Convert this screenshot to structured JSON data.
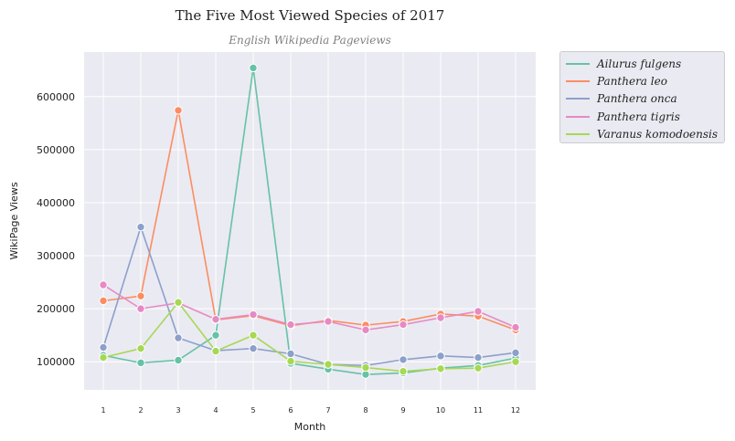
{
  "chart_data": {
    "type": "line",
    "title": "The Five Most Viewed Species of 2017",
    "subtitle": "English Wikipedia Pageviews",
    "xlabel": "Month",
    "ylabel": "WikiPage Views",
    "x": [
      1,
      2,
      3,
      4,
      5,
      6,
      7,
      8,
      9,
      10,
      11,
      12
    ],
    "xticks": [
      "1",
      "2",
      "3",
      "4",
      "5",
      "6",
      "7",
      "8",
      "9",
      "10",
      "11",
      "12"
    ],
    "yticks": [
      "100000",
      "200000",
      "300000",
      "400000",
      "500000",
      "600000"
    ],
    "ylim": [
      47000,
      684000
    ],
    "grid": true,
    "legend_position": "outside-right",
    "series": [
      {
        "name": "Ailurus fulgens",
        "color": "#66c2a5",
        "values": [
          112000,
          98000,
          103000,
          150000,
          654000,
          97000,
          86000,
          76000,
          79000,
          88000,
          93000,
          107000
        ]
      },
      {
        "name": "Panthera leo",
        "color": "#fc8d62",
        "values": [
          215000,
          224000,
          574000,
          179000,
          187000,
          168000,
          178000,
          169000,
          176000,
          190000,
          186000,
          160000
        ]
      },
      {
        "name": "Panthera onca",
        "color": "#8da0cb",
        "values": [
          127000,
          354000,
          145000,
          121000,
          125000,
          115000,
          95000,
          93000,
          104000,
          111000,
          108000,
          117000
        ]
      },
      {
        "name": "Panthera tigris",
        "color": "#e78ac3",
        "values": [
          245000,
          200000,
          211000,
          180000,
          189000,
          170000,
          176000,
          160000,
          170000,
          183000,
          195000,
          165000
        ]
      },
      {
        "name": "Varanus komodoensis",
        "color": "#a6d854",
        "values": [
          108000,
          125000,
          212000,
          120000,
          150000,
          101000,
          95000,
          89000,
          82000,
          87000,
          88000,
          100000
        ]
      }
    ]
  }
}
